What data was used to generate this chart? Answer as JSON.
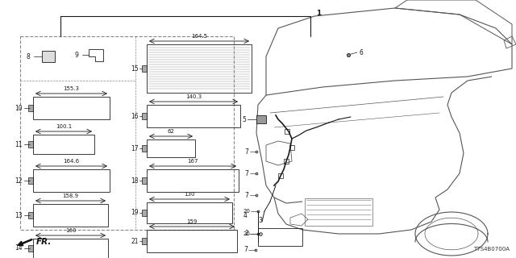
{
  "bg_color": "#ffffff",
  "diagram_number": "T7S4B0700A",
  "lc": "#1a1a1a",
  "gray": "#555555",
  "dashed_color": "#888888",
  "figsize": [
    6.4,
    3.2
  ],
  "dpi": 100,
  "label_fs": 5.0,
  "id_fs": 5.5,
  "left_panel": {
    "items_left": [
      {
        "id": "10",
        "label": "155.3",
        "bx": 0.085,
        "by": 0.695,
        "bw": 0.1,
        "bh": 0.048
      },
      {
        "id": "11",
        "label": "100.1",
        "bx": 0.085,
        "by": 0.59,
        "bw": 0.078,
        "bh": 0.04
      },
      {
        "id": "12",
        "label": "164.6",
        "bx": 0.085,
        "by": 0.49,
        "bw": 0.1,
        "bh": 0.048
      },
      {
        "id": "13",
        "label": "158.9",
        "bx": 0.085,
        "by": 0.385,
        "bw": 0.098,
        "bh": 0.048
      },
      {
        "id": "14",
        "label": "160",
        "bx": 0.085,
        "by": 0.28,
        "bw": 0.098,
        "bh": 0.04
      }
    ],
    "items_right": [
      {
        "id": "15",
        "label": "164.5",
        "bx": 0.265,
        "by": 0.76,
        "bw": 0.12,
        "bh": 0.06
      },
      {
        "id": "16",
        "label": "140.3",
        "bx": 0.265,
        "by": 0.645,
        "bw": 0.11,
        "bh": 0.048
      },
      {
        "id": "17",
        "label": "62",
        "bx": 0.265,
        "by": 0.545,
        "bw": 0.062,
        "bh": 0.036
      },
      {
        "id": "18",
        "label": "167",
        "bx": 0.265,
        "by": 0.43,
        "bw": 0.11,
        "bh": 0.048
      },
      {
        "id": "19",
        "label": "130",
        "bx": 0.265,
        "by": 0.32,
        "bw": 0.1,
        "bh": 0.044
      },
      {
        "id": "21",
        "label": "159",
        "bx": 0.265,
        "by": 0.21,
        "bw": 0.11,
        "bh": 0.048
      }
    ]
  }
}
